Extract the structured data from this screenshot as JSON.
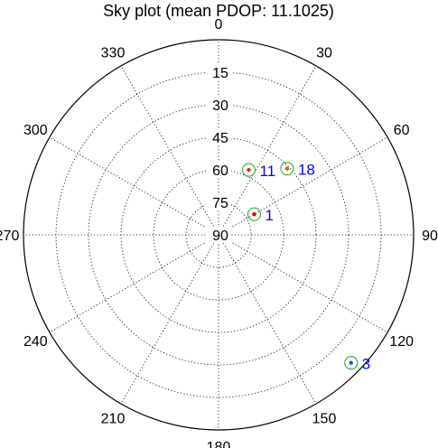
{
  "chart_data": {
    "type": "scatter",
    "projection": "polar-skyplot",
    "title": "Sky plot (mean PDOP: 11.1025)",
    "azimuth_ticks": [
      "0",
      "30",
      "60",
      "90",
      "120",
      "150",
      "180",
      "210",
      "240",
      "270",
      "300",
      "330"
    ],
    "elevation_ticks": [
      "15",
      "30",
      "45",
      "60",
      "75",
      "90"
    ],
    "elevation_range": [
      0,
      90
    ],
    "grid": true,
    "grid_style": "dotted",
    "label_color": "#0000ff",
    "ring_color": "#33aa33",
    "satellites": [
      {
        "prn": "1",
        "azimuth": 60,
        "elevation": 71,
        "dot_color": "#cc0000"
      },
      {
        "prn": "3",
        "azimuth": 134,
        "elevation": 5,
        "dot_color": "#1060d0"
      },
      {
        "prn": "11",
        "azimuth": 25,
        "elevation": 57,
        "dot_color": "#cc3300"
      },
      {
        "prn": "18",
        "azimuth": 46,
        "elevation": 46,
        "dot_color": "#cc6600"
      }
    ]
  }
}
